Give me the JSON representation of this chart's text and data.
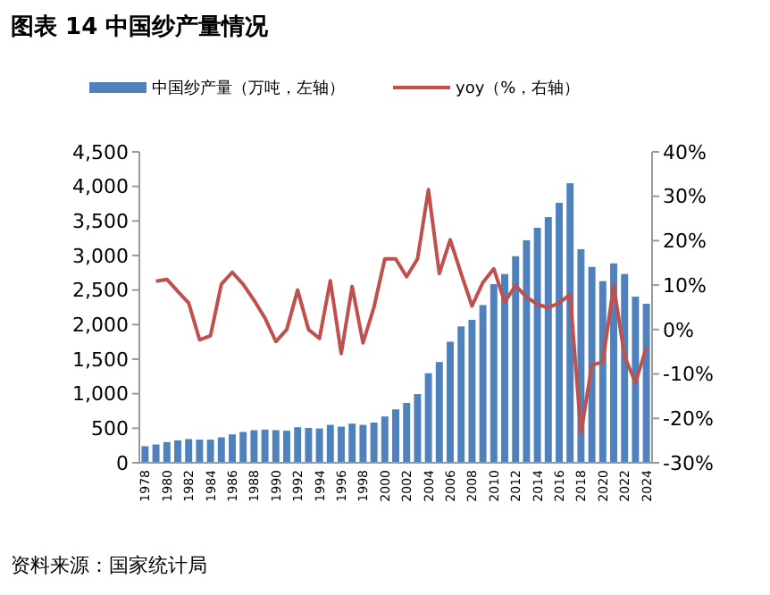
{
  "chart_data": {
    "type": "bar",
    "title": "图表 14 中国纱产量情况",
    "annotations": [
      "资料来源：国家统计局"
    ],
    "categories": [
      "1978",
      null,
      "1980",
      null,
      "1982",
      null,
      "1984",
      null,
      "1986",
      null,
      "1988",
      null,
      "1990",
      null,
      "1992",
      null,
      "1994",
      null,
      "1996",
      null,
      "1998",
      null,
      "2000",
      null,
      "2002",
      null,
      "2004",
      null,
      "2006",
      null,
      "2008",
      null,
      "2010",
      null,
      "2012",
      null,
      "2014",
      null,
      "2016",
      null,
      "2018",
      null,
      "2020",
      null,
      "2022",
      null,
      "2024"
    ],
    "series": [
      {
        "name": "中国纱产量（万吨，左轴）",
        "color": "#4f81bd",
        "values": [
          240,
          265,
          300,
          325,
          343,
          335,
          335,
          368,
          412,
          446,
          472,
          480,
          472,
          464,
          515,
          505,
          497,
          549,
          523,
          567,
          549,
          582,
          670,
          773,
          866,
          995,
          1296,
          1459,
          1752,
          1974,
          2069,
          2283,
          2585,
          2732,
          2990,
          3221,
          3402,
          3556,
          3763,
          4046,
          3092,
          2835,
          2629,
          2886,
          2732,
          2404,
          2301
        ]
      },
      {
        "name": "yoy（%，右轴）",
        "type": "line",
        "axis": "y2",
        "color": "#c0504d",
        "values": [
          null,
          10.9,
          11.3,
          8.6,
          6.0,
          -2.3,
          -1.4,
          10.2,
          12.9,
          10.2,
          6.6,
          2.6,
          -2.7,
          0,
          8.9,
          0,
          -2.0,
          11.0,
          -5.4,
          9.7,
          -3,
          5,
          15.9,
          15.9,
          11.9,
          15.9,
          31.5,
          12.6,
          20.2,
          12.6,
          5.3,
          10.6,
          13.7,
          6.2,
          9.9,
          7.3,
          5.7,
          4.9,
          6.0,
          7.9,
          -23.3,
          -8.0,
          -7.3,
          9.9,
          -6.0,
          -12.0,
          -4.0
        ]
      }
    ],
    "ylim": [
      0,
      4500
    ],
    "yticks": [
      0,
      {
        "value": 500,
        "label": "500"
      },
      {
        "value": 1000,
        "label": "1,000"
      },
      {
        "value": 1500,
        "label": "1,500"
      },
      {
        "value": 2000,
        "label": "2,000"
      },
      {
        "value": 2500,
        "label": "2,500"
      },
      {
        "value": 3000,
        "label": "3,000"
      },
      {
        "value": 3500,
        "label": "3,500"
      },
      {
        "value": 4000,
        "label": "4,000"
      },
      {
        "value": 4500,
        "label": "4,500"
      }
    ],
    "y2lim": [
      -30,
      40
    ],
    "y2ticks": [
      {
        "value": -30,
        "label": "-30%"
      },
      {
        "value": -20,
        "label": "-20%"
      },
      {
        "value": -10,
        "label": "-10%"
      },
      {
        "value": 0,
        "label": "0%"
      },
      {
        "value": 10,
        "label": "10%"
      },
      {
        "value": 20,
        "label": "20%"
      },
      {
        "value": 30,
        "label": "30%"
      },
      {
        "value": 40,
        "label": "40%"
      }
    ],
    "legend": "top",
    "grid": false,
    "line_style": "solid",
    "marker": "none"
  }
}
